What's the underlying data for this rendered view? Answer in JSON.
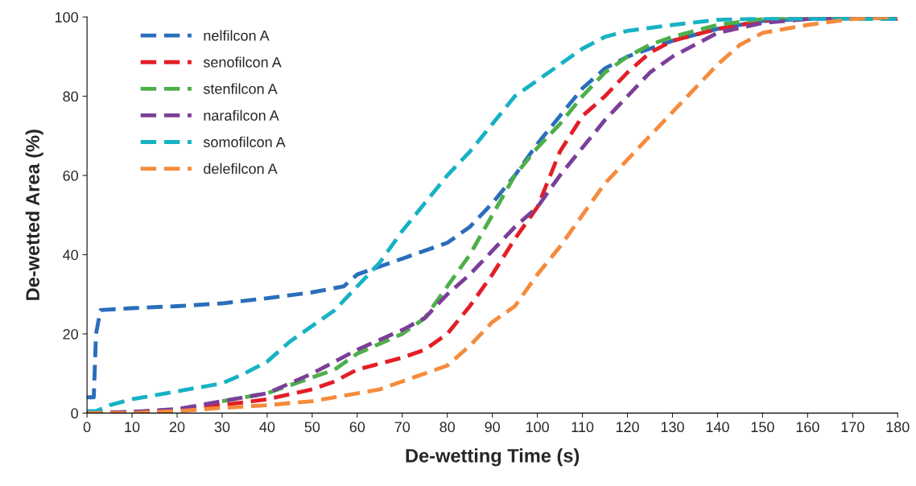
{
  "chart_data": {
    "type": "line",
    "xlabel": "De-wetting Time (s)",
    "ylabel": "De-wetted Area (%)",
    "xlim": [
      0,
      180
    ],
    "xticks": [
      0,
      10,
      20,
      30,
      40,
      50,
      60,
      70,
      80,
      90,
      100,
      110,
      120,
      130,
      140,
      150,
      160,
      170,
      180
    ],
    "ylim": [
      0,
      100
    ],
    "yticks": [
      0,
      20,
      40,
      60,
      80,
      100
    ],
    "grid": false,
    "legend": "top left",
    "line_style": "dashed",
    "marker": "none",
    "series": [
      {
        "name": "nelfilcon A",
        "color": "#2a6ebb",
        "x": [
          0,
          1.5,
          2,
          3,
          10,
          20,
          30,
          40,
          50,
          57,
          60,
          65,
          70,
          80,
          85,
          90,
          95,
          100,
          105,
          110,
          115,
          120,
          125,
          130,
          140,
          150,
          160,
          170,
          180
        ],
        "values": [
          4,
          4,
          20,
          26,
          26.5,
          27,
          27.7,
          29,
          30.5,
          32,
          35,
          37,
          39,
          43,
          47,
          53,
          60,
          68,
          75,
          82,
          87,
          90,
          92,
          94,
          97,
          99,
          99.5,
          100,
          99.5
        ]
      },
      {
        "name": "senofilcon A",
        "color": "#e31e26",
        "x": [
          0,
          10,
          20,
          30,
          40,
          50,
          55,
          60,
          70,
          75,
          80,
          85,
          90,
          95,
          100,
          105,
          110,
          115,
          120,
          125,
          130,
          140,
          150,
          160,
          170,
          180
        ],
        "values": [
          0,
          0.3,
          0.8,
          2,
          3.5,
          6,
          8,
          11,
          14,
          16,
          20,
          27,
          35,
          44,
          52,
          66,
          75,
          80,
          86,
          91,
          94,
          97,
          99,
          100,
          100,
          99.5
        ]
      },
      {
        "name": "stenfilcon A",
        "color": "#4daf4a",
        "x": [
          30,
          40,
          50,
          55,
          60,
          70,
          75,
          80,
          85,
          90,
          95,
          100,
          105,
          110,
          115,
          120,
          125,
          130,
          140,
          150,
          160,
          180
        ],
        "values": [
          3,
          5,
          9,
          11,
          15,
          20,
          24,
          32,
          40,
          50,
          60,
          67,
          73,
          80,
          86,
          90,
          93,
          95,
          98,
          99.5,
          100,
          100
        ]
      },
      {
        "name": "narafilcon A",
        "color": "#7b3f98",
        "x": [
          0,
          10,
          20,
          30,
          40,
          50,
          60,
          70,
          75,
          80,
          85,
          90,
          95,
          100,
          105,
          110,
          115,
          120,
          125,
          130,
          135,
          140,
          150,
          160,
          180
        ],
        "values": [
          0,
          0.3,
          1,
          3,
          5,
          10,
          16,
          21,
          24,
          30,
          35,
          41,
          47,
          52,
          60,
          67,
          74,
          80,
          86,
          90,
          93,
          96,
          98.5,
          99.5,
          100
        ]
      },
      {
        "name": "somofilcon A",
        "color": "#17b2c4",
        "x": [
          0,
          2,
          5,
          10,
          20,
          30,
          35,
          40,
          45,
          50,
          55,
          60,
          65,
          70,
          75,
          80,
          85,
          90,
          95,
          100,
          105,
          110,
          115,
          120,
          130,
          140,
          150,
          180
        ],
        "values": [
          0.5,
          0.5,
          2,
          3.5,
          5.5,
          7.5,
          10,
          13,
          18,
          22,
          26,
          32,
          38,
          46,
          53,
          60,
          66,
          73,
          80,
          84,
          88,
          92,
          95,
          96.5,
          98,
          99.3,
          99.6,
          99.5
        ]
      },
      {
        "name": "delefilcon A",
        "color": "#f58b3c",
        "x": [
          0,
          10,
          20,
          30,
          40,
          50,
          60,
          65,
          70,
          80,
          85,
          90,
          95,
          100,
          105,
          110,
          115,
          120,
          125,
          130,
          135,
          140,
          145,
          150,
          160,
          170,
          180
        ],
        "values": [
          0,
          0,
          0.5,
          1.3,
          2,
          3,
          5,
          6,
          8,
          12,
          17,
          23,
          27,
          35,
          42,
          50,
          58,
          64,
          70,
          76,
          82,
          88,
          93,
          96,
          98,
          99.5,
          100
        ]
      }
    ]
  }
}
